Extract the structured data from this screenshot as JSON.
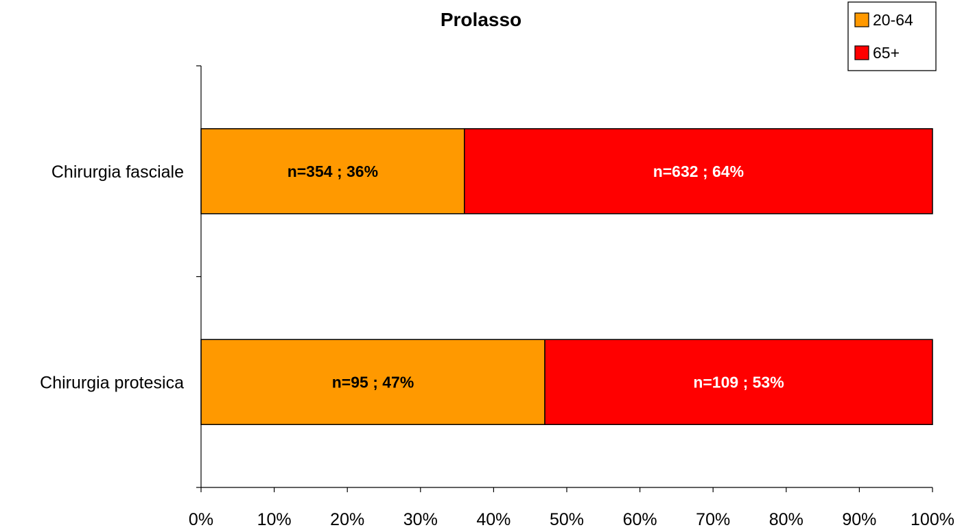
{
  "chart_data": {
    "type": "bar",
    "orientation": "horizontal",
    "stacked": "percent",
    "title": "Prolasso",
    "categories": [
      "Chirurgia fasciale",
      "Chirurgia protesica"
    ],
    "series": [
      {
        "name": "20-64",
        "color": "#ff9900",
        "label_color": "#000000",
        "values": [
          36,
          47
        ],
        "counts": [
          354,
          95
        ],
        "labels": [
          "n=354 ; 36%",
          "n=95 ; 47%"
        ]
      },
      {
        "name": "65+",
        "color": "#ff0000",
        "label_color": "#ffffff",
        "values": [
          64,
          53
        ],
        "counts": [
          632,
          109
        ],
        "labels": [
          "n=632 ; 64%",
          "n=109 ; 53%"
        ]
      }
    ],
    "xlim": [
      0,
      100
    ],
    "xticks": [
      "0%",
      "10%",
      "20%",
      "30%",
      "40%",
      "50%",
      "60%",
      "70%",
      "80%",
      "90%",
      "100%"
    ],
    "xlabel": "",
    "ylabel": "",
    "grid": false,
    "legend_position": "top-right"
  }
}
